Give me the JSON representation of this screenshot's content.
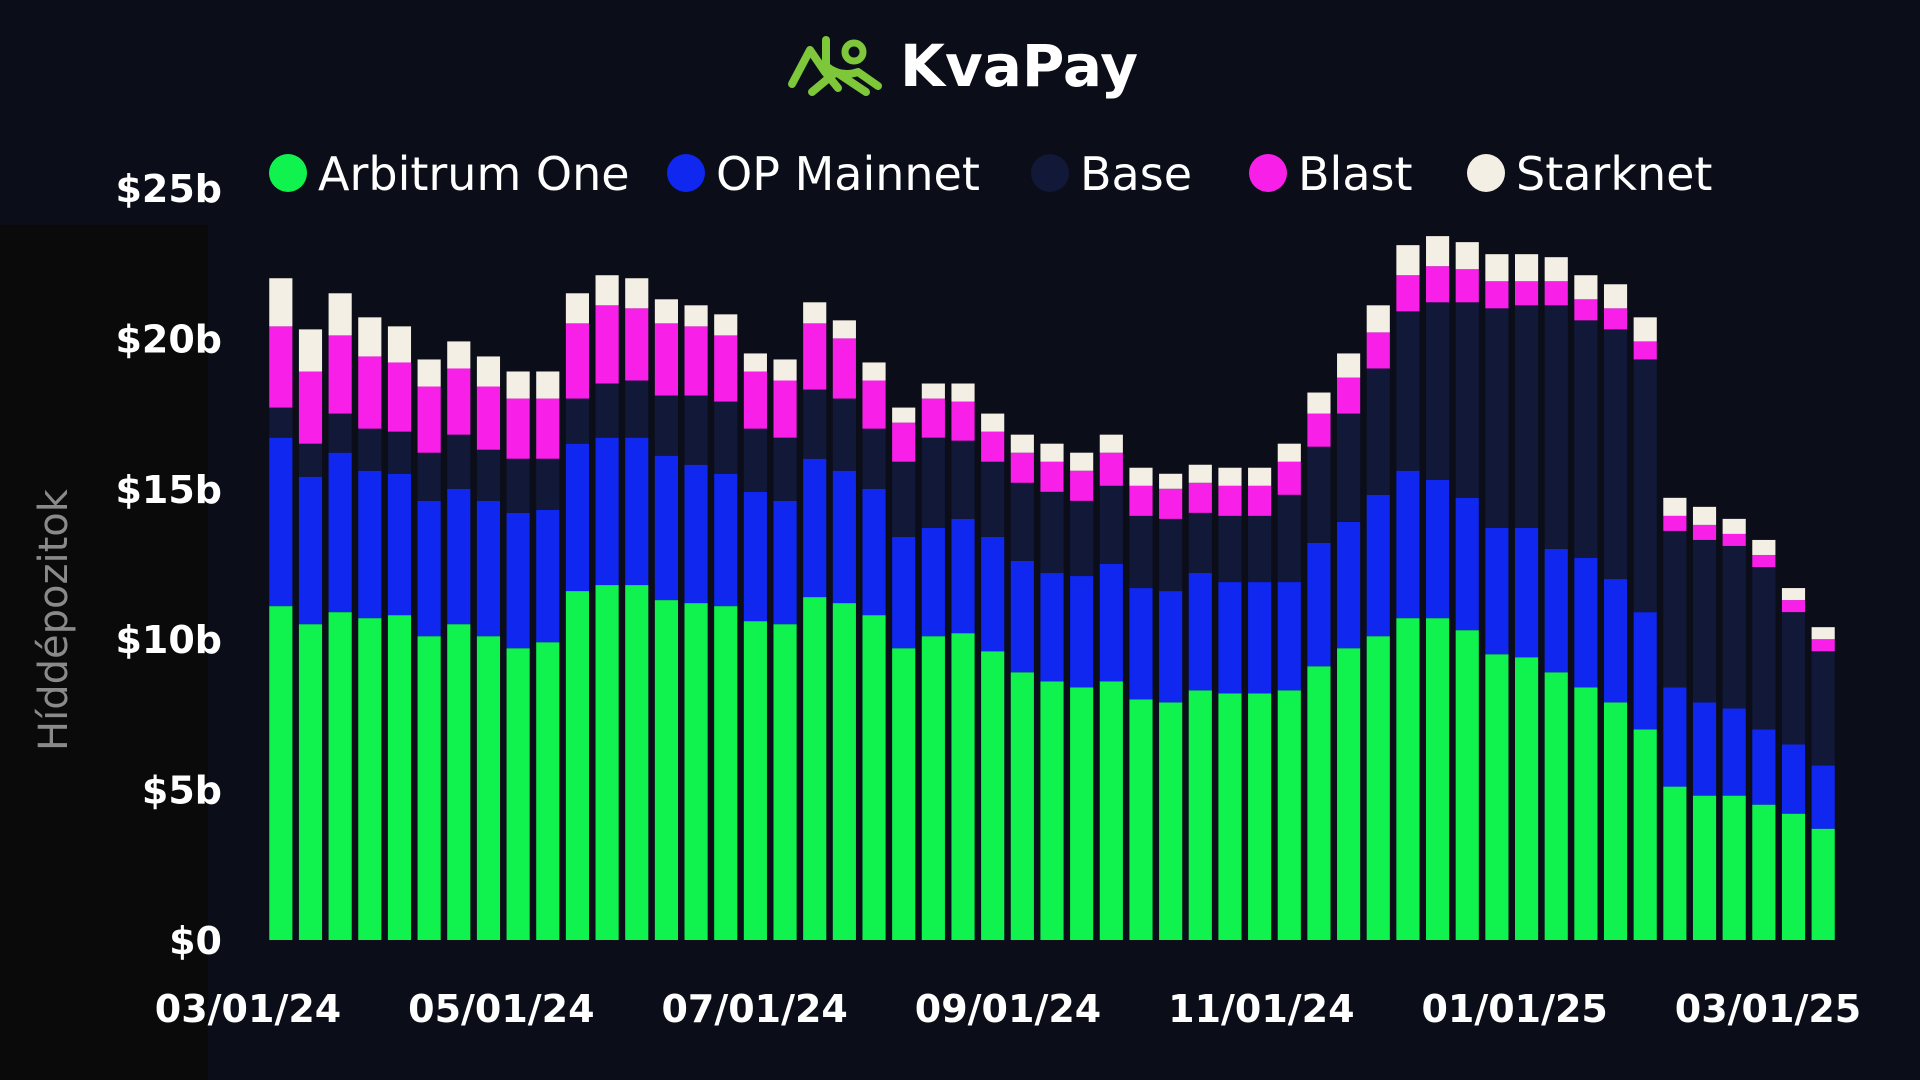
{
  "brand": {
    "name": "KvaPay",
    "logo_icon": "frog-logo-icon",
    "logo_color": "#7ec63a"
  },
  "chart_data": {
    "type": "bar",
    "stacked": true,
    "title": "",
    "xlabel": "",
    "ylabel": "Híddépozitok",
    "ylim": [
      0,
      25
    ],
    "yticks": [
      0,
      5,
      10,
      15,
      20,
      25
    ],
    "ytick_labels": [
      "$0",
      "$5b",
      "$10b",
      "$15b",
      "$20b",
      "$25b"
    ],
    "xtick_labels": [
      "03/01/24",
      "05/01/24",
      "07/01/24",
      "09/01/24",
      "11/01/24",
      "01/01/25",
      "03/01/25"
    ],
    "legend_position": "top",
    "grid": false,
    "series": [
      {
        "name": "Arbitrum One",
        "color": "#10f24e",
        "values": [
          11.1,
          10.5,
          10.9,
          10.7,
          10.8,
          10.1,
          10.5,
          10.1,
          9.7,
          9.9,
          11.6,
          11.8,
          11.8,
          11.3,
          11.2,
          11.1,
          10.6,
          10.5,
          11.4,
          11.2,
          10.8,
          9.7,
          10.1,
          10.2,
          9.6,
          8.9,
          8.6,
          8.4,
          8.6,
          8.0,
          7.9,
          8.3,
          8.2,
          8.2,
          8.3,
          9.1,
          9.7,
          10.1,
          10.7,
          10.7,
          10.3,
          9.5,
          9.4,
          8.9,
          8.4,
          7.9,
          7.0,
          5.1,
          4.8,
          4.8,
          4.5,
          4.2,
          3.7
        ]
      },
      {
        "name": "OP Mainnet",
        "color": "#0f27ef",
        "values": [
          5.6,
          4.9,
          5.3,
          4.9,
          4.7,
          4.5,
          4.5,
          4.5,
          4.5,
          4.4,
          4.9,
          4.9,
          4.9,
          4.8,
          4.6,
          4.4,
          4.3,
          4.1,
          4.6,
          4.4,
          4.2,
          3.7,
          3.6,
          3.8,
          3.8,
          3.7,
          3.6,
          3.7,
          3.9,
          3.7,
          3.7,
          3.9,
          3.7,
          3.7,
          3.6,
          4.1,
          4.2,
          4.7,
          4.9,
          4.6,
          4.4,
          4.2,
          4.3,
          4.1,
          4.3,
          4.1,
          3.9,
          3.3,
          3.1,
          2.9,
          2.5,
          2.3,
          2.1
        ]
      },
      {
        "name": "Base",
        "color": "#121838",
        "values": [
          1.0,
          1.1,
          1.3,
          1.4,
          1.4,
          1.6,
          1.8,
          1.7,
          1.8,
          1.7,
          1.5,
          1.8,
          1.9,
          2.0,
          2.3,
          2.4,
          2.1,
          2.1,
          2.3,
          2.4,
          2.0,
          2.5,
          3.0,
          2.6,
          2.5,
          2.6,
          2.7,
          2.5,
          2.6,
          2.4,
          2.4,
          2.0,
          2.2,
          2.2,
          2.9,
          3.2,
          3.6,
          4.2,
          5.3,
          5.9,
          6.5,
          7.3,
          7.4,
          8.1,
          7.9,
          8.3,
          8.4,
          5.2,
          5.4,
          5.4,
          5.4,
          4.4,
          3.8
        ]
      },
      {
        "name": "Blast",
        "color": "#f820e8",
        "values": [
          2.7,
          2.4,
          2.6,
          2.4,
          2.3,
          2.2,
          2.2,
          2.1,
          2.0,
          2.0,
          2.5,
          2.6,
          2.4,
          2.4,
          2.3,
          2.2,
          1.9,
          1.9,
          2.2,
          2.0,
          1.6,
          1.3,
          1.3,
          1.3,
          1.0,
          1.0,
          1.0,
          1.0,
          1.1,
          1.0,
          1.0,
          1.0,
          1.0,
          1.0,
          1.1,
          1.1,
          1.2,
          1.2,
          1.2,
          1.2,
          1.1,
          0.9,
          0.8,
          0.8,
          0.7,
          0.7,
          0.6,
          0.5,
          0.5,
          0.4,
          0.4,
          0.4,
          0.4
        ]
      },
      {
        "name": "Starknet",
        "color": "#f4efe4",
        "values": [
          1.6,
          1.4,
          1.4,
          1.3,
          1.2,
          0.9,
          0.9,
          1.0,
          0.9,
          0.9,
          1.0,
          1.0,
          1.0,
          0.8,
          0.7,
          0.7,
          0.6,
          0.7,
          0.7,
          0.6,
          0.6,
          0.5,
          0.5,
          0.6,
          0.6,
          0.6,
          0.6,
          0.6,
          0.6,
          0.6,
          0.5,
          0.6,
          0.6,
          0.6,
          0.6,
          0.7,
          0.8,
          0.9,
          1.0,
          1.0,
          0.9,
          0.9,
          0.9,
          0.8,
          0.8,
          0.8,
          0.8,
          0.6,
          0.6,
          0.5,
          0.5,
          0.4,
          0.4
        ]
      }
    ]
  }
}
